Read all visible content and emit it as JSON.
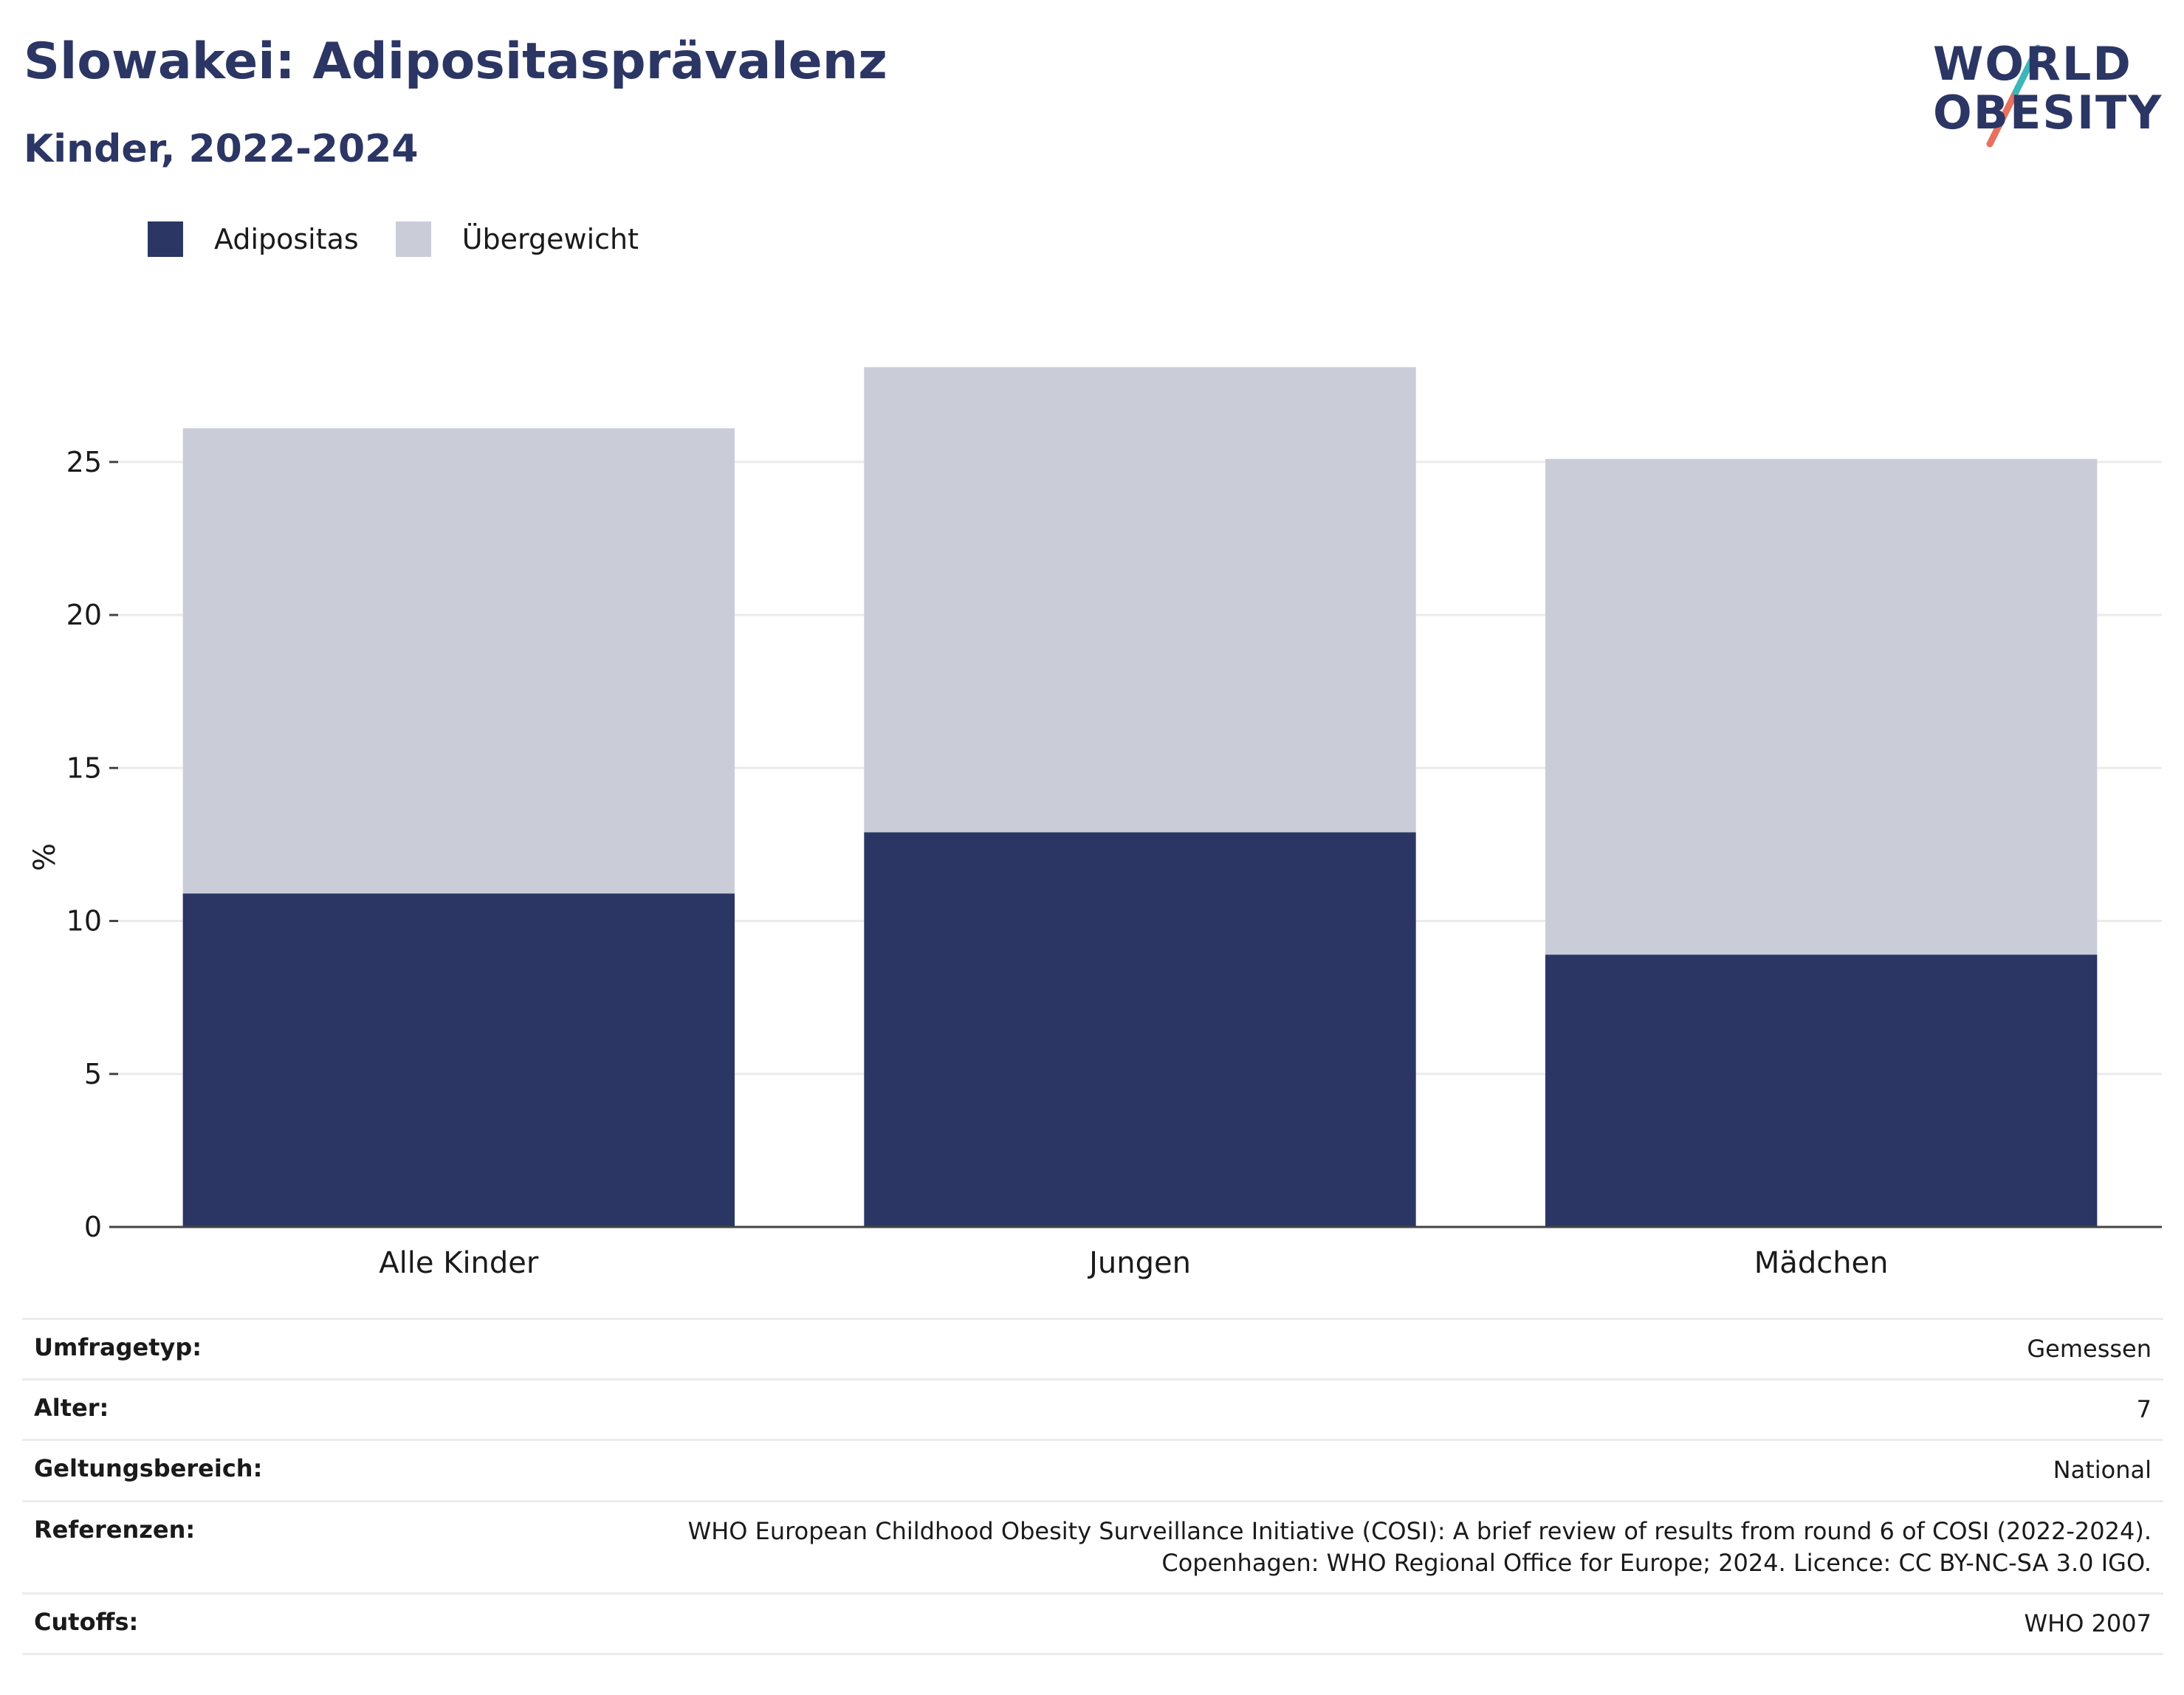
{
  "title": "Slowakei: Adipositasprävalenz",
  "subtitle": "Kinder, 2022-2024",
  "logo": {
    "line1": "WORLD",
    "line2": "OBESITY"
  },
  "legend": [
    {
      "label": "Adipositas",
      "color": "#2b3664"
    },
    {
      "label": "Übergewicht",
      "color": "#cacdd8"
    }
  ],
  "chart_data": {
    "type": "bar",
    "stacked": true,
    "categories": [
      "Alle Kinder",
      "Jungen",
      "Mädchen"
    ],
    "series": [
      {
        "name": "Adipositas",
        "values": [
          10.9,
          12.9,
          8.9
        ],
        "color": "#2b3664"
      },
      {
        "name": "Übergewicht",
        "values": [
          15.2,
          15.2,
          16.2
        ],
        "color": "#cacdd8"
      }
    ],
    "xlabel": "",
    "ylabel": "%",
    "ylim": [
      0,
      29
    ],
    "yticks": [
      0,
      5,
      10,
      15,
      20,
      25
    ],
    "grid": true,
    "legend_position": "top-left"
  },
  "meta": [
    {
      "key": "Umfragetyp:",
      "value": [
        "Gemessen"
      ]
    },
    {
      "key": "Alter:",
      "value": [
        "7"
      ]
    },
    {
      "key": "Geltungsbereich:",
      "value": [
        "National"
      ]
    },
    {
      "key": "Referenzen:",
      "value": [
        "WHO European Childhood Obesity Surveillance Initiative (COSI): A brief review of results from round 6 of COSI (2022-2024).",
        "Copenhagen: WHO Regional Office for Europe; 2024. Licence: CC BY-NC-SA 3.0 IGO."
      ]
    },
    {
      "key": "Cutoffs:",
      "value": [
        "WHO 2007"
      ]
    }
  ]
}
